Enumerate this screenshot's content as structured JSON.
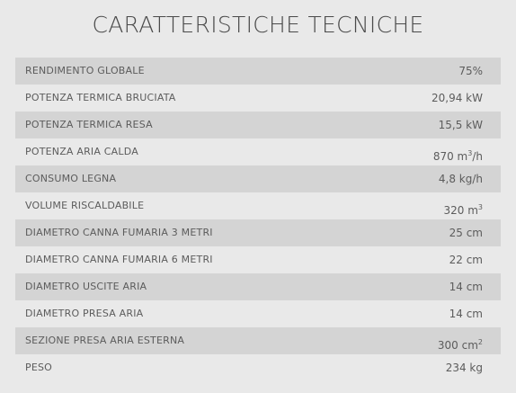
{
  "title": "CARATTERISTICHE TECNICHE",
  "rows": [
    {
      "label": "RENDIMENTO GLOBALE",
      "value": "75%",
      "sup": ""
    },
    {
      "label": "POTENZA TERMICA BRUCIATA",
      "value": "20,94 kW",
      "sup": ""
    },
    {
      "label": "POTENZA TERMICA RESA",
      "value": "15,5 kW",
      "sup": ""
    },
    {
      "label": "POTENZA ARIA CALDA",
      "value": "870 m",
      "sup": "3",
      "suffix": "/h"
    },
    {
      "label": "CONSUMO LEGNA",
      "value": "4,8 kg/h",
      "sup": ""
    },
    {
      "label": "VOLUME RISCALDABILE",
      "value": "320 m",
      "sup": "3"
    },
    {
      "label": "DIAMETRO CANNA FUMARIA 3 METRI",
      "value": "25 cm",
      "sup": ""
    },
    {
      "label": "DIAMETRO CANNA FUMARIA 6 METRI",
      "value": "22 cm",
      "sup": ""
    },
    {
      "label": "DIAMETRO USCITE ARIA",
      "value": "14 cm",
      "sup": ""
    },
    {
      "label": "DIAMETRO PRESA ARIA",
      "value": "14 cm",
      "sup": ""
    },
    {
      "label": "SEZIONE PRESA ARIA ESTERNA",
      "value": "300 cm",
      "sup": "2"
    },
    {
      "label": "PESO",
      "value": "234 kg",
      "sup": ""
    }
  ]
}
